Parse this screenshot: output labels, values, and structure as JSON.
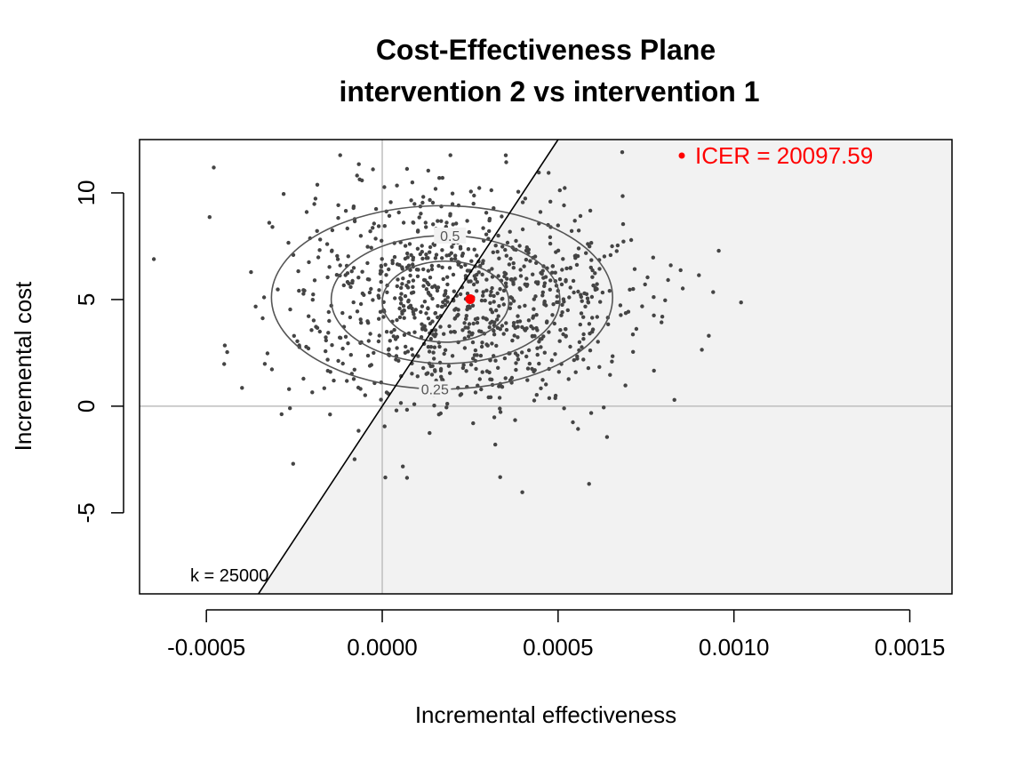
{
  "chart_data": {
    "type": "scatter",
    "title": "Cost-Effectiveness Plane",
    "subtitle": "intervention 2 vs intervention 1",
    "xlabel": "Incremental effectiveness",
    "ylabel": "Incremental cost",
    "xlim": [
      -0.00069,
      0.00162
    ],
    "ylim": [
      -8.8,
      12.5
    ],
    "x_ticks": [
      -0.0005,
      0.0,
      0.0005,
      0.001,
      0.0015
    ],
    "x_tick_labels": [
      "-0.0005",
      "0.0000",
      "0.0005",
      "0.0010",
      "0.0015"
    ],
    "y_ticks": [
      -5,
      0,
      5,
      10
    ],
    "y_tick_labels": [
      "-5",
      "0",
      "5",
      "10"
    ],
    "grid": false,
    "reference_lines": {
      "x": 0,
      "y": 0
    },
    "wtp_threshold": {
      "k": 25000,
      "label": "k = 25000"
    },
    "icer": {
      "x": 0.00025,
      "y": 5.02,
      "value": 20097.59,
      "label": "ICER = 20097.59",
      "color": "#ff0000"
    },
    "contours": [
      {
        "level": 0.25,
        "label": "0.25",
        "center": [
          0.00017,
          5.1
        ],
        "rx": 0.000485,
        "ry": 4.3
      },
      {
        "level": 0.5,
        "label": "0.5",
        "center": [
          0.00018,
          5.0
        ],
        "rx": 0.000325,
        "ry": 3.0
      },
      {
        "level": 0.75,
        "label": "",
        "center": [
          0.00018,
          4.9
        ],
        "rx": 0.00018,
        "ry": 1.9
      }
    ],
    "scatter_summary": {
      "n_points": 1000,
      "mean_x": 0.00022,
      "mean_y": 5.0,
      "sd_x": 0.00025,
      "sd_y": 2.7
    },
    "colors": {
      "points": "#444444",
      "contour": "#555555",
      "shade": "#f2f2f2",
      "reference": "#bebebe",
      "icer": "#ff0000"
    }
  }
}
